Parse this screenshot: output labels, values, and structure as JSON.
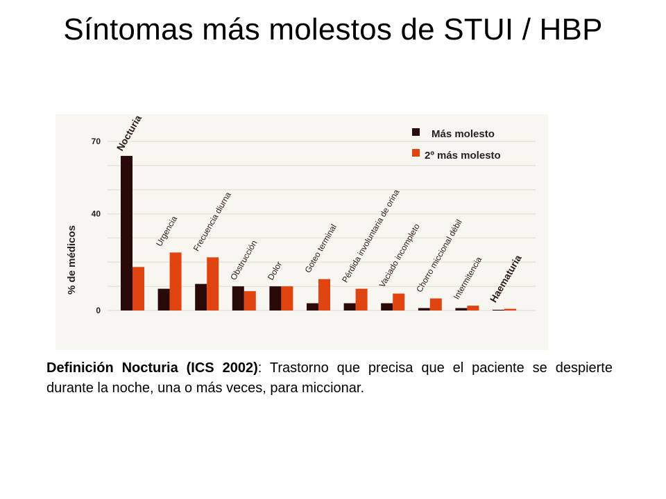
{
  "title": "Síntomas más molestos de STUI / HBP",
  "definition": {
    "term": "Definición Nocturia (ICS 2002)",
    "text": ": Trastorno que precisa que el paciente se despierte durante la noche, una o más veces, para miccionar."
  },
  "colors": {
    "most": "#2a0a08",
    "second": "#e2440f",
    "grid": "#e5e3da",
    "panel": "#f7f6f1"
  },
  "chart_data": {
    "type": "bar",
    "title": "",
    "xlabel": "",
    "ylabel": "% de médicos",
    "ylim": [
      0,
      70
    ],
    "yticks": [
      0,
      40,
      70
    ],
    "grid": true,
    "legend_position": "top-right",
    "categories": [
      "Nocturia",
      "Urgencia",
      "Frecuencia diurna",
      "Obstrucción",
      "Dolor",
      "Goteo terminal",
      "Pérdida involuntaria de orina",
      "Vaciado incompleto",
      "Chorro miccional débil",
      "Intermitencia",
      "Haematuria"
    ],
    "series": [
      {
        "name": "Más molesto",
        "values": [
          64,
          9,
          11,
          10,
          10,
          3,
          3,
          3,
          1,
          1,
          0.3
        ]
      },
      {
        "name": "2º más molesto",
        "values": [
          18,
          24,
          22,
          8,
          10,
          13,
          9,
          7,
          5,
          2,
          0.7
        ]
      }
    ]
  }
}
